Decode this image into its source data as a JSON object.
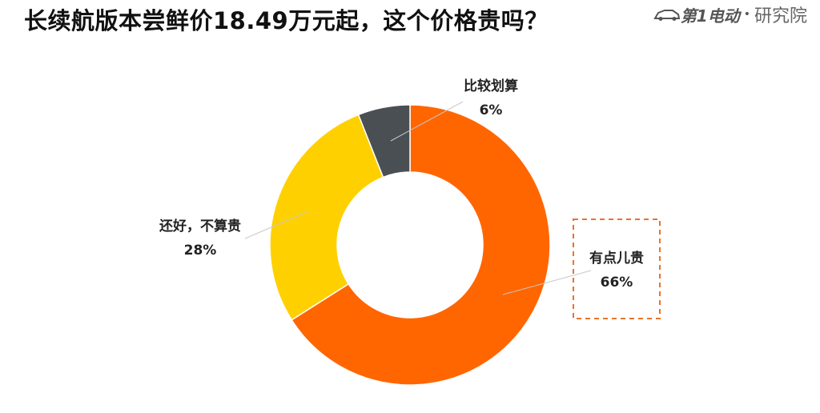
{
  "header": {
    "title": "长续航版本尝鲜价18.49万元起，这个价格贵吗？",
    "logo_brand": "第1电动",
    "logo_unit": "研究院"
  },
  "chart_data": {
    "type": "pie",
    "donut": true,
    "categories": [
      "有点儿贵",
      "还好，不算贵",
      "比较划算"
    ],
    "values": [
      66,
      28,
      6
    ],
    "value_labels": [
      "66%",
      "28%",
      "6%"
    ],
    "colors": [
      "#FF6600",
      "#FFD000",
      "#4A4F53"
    ],
    "highlighted": "有点儿贵",
    "highlight_color": "#E8742A"
  }
}
